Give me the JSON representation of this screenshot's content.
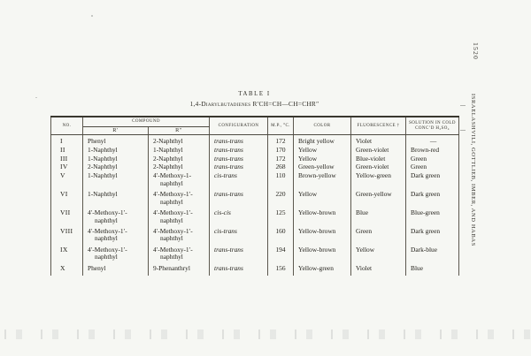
{
  "page": {
    "page_number": "1520",
    "running_head": "ISRAELASHVILI, GOTTLIEB, IMBER, AND HABAS"
  },
  "table": {
    "title": "TABLE I",
    "subtitle": "1,4-Diarylbutadienes R′CH=CH—CH=CHR″",
    "headers": {
      "no": "No.",
      "compound": "Compound",
      "r_prime": "R′",
      "r_double_prime": "R″",
      "configuration": "Configuration",
      "mp": "M.P., °C.",
      "color": "Color",
      "fluorescence": "Fluorescence †",
      "solution_line1": "Solution in cold",
      "solution_line2": "conc’d H₂SO₄"
    },
    "rows": [
      {
        "no": "I",
        "r1": "Phenyl",
        "r2": "2-Naphthyl",
        "config": "trans-trans",
        "mp": "172",
        "color": "Bright yellow",
        "fluorescence": "Violet",
        "solution": "—"
      },
      {
        "no": "II",
        "r1": "1-Naphthyl",
        "r2": "1-Naphthyl",
        "config": "trans-trans",
        "mp": "170",
        "color": "Yellow",
        "fluorescence": "Green-violet",
        "solution": "Brown-red"
      },
      {
        "no": "III",
        "r1": "1-Naphthyl",
        "r2": "2-Naphthyl",
        "config": "trans-trans",
        "mp": "172",
        "color": "Yellow",
        "fluorescence": "Blue-violet",
        "solution": "Green"
      },
      {
        "no": "IV",
        "r1": "2-Naphthyl",
        "r2": "2-Naphthyl",
        "config": "trans-trans",
        "mp": "268",
        "color": "Green-yellow",
        "fluorescence": "Green-violet",
        "solution": "Green"
      },
      {
        "no": "V",
        "r1": "1-Naphthyl",
        "r2": "4′-Methoxy-1-naphthyl",
        "config": "cis-trans",
        "mp": "110",
        "color": "Brown-yellow",
        "fluorescence": "Yellow-green",
        "solution": "Dark green"
      },
      {
        "no": "VI",
        "r1": "1-Naphthyl",
        "r2": "4′-Methoxy-1′-naphthyl",
        "config": "trans-trans",
        "mp": "220",
        "color": "Yellow",
        "fluorescence": "Green-yellow",
        "solution": "Dark green"
      },
      {
        "no": "VII",
        "r1": "4′-Methoxy-1′-naphthyl",
        "r2": "4′-Methoxy-1′-naphthyl",
        "config": "cis-cis",
        "mp": "125",
        "color": "Yellow-brown",
        "fluorescence": "Blue",
        "solution": "Blue-green"
      },
      {
        "no": "VIII",
        "r1": "4′-Methoxy-1′-naphthyl",
        "r2": "4′-Methoxy-1′-naphthyl",
        "config": "cis-trans",
        "mp": "160",
        "color": "Yellow-brown",
        "fluorescence": "Green",
        "solution": "Dark green"
      },
      {
        "no": "IX",
        "r1": "4′-Methoxy-1′-naphthyl",
        "r2": "4′-Methoxy-1′-naphthyl",
        "config": "trans-trans",
        "mp": "194",
        "color": "Yellow-brown",
        "fluorescence": "Yellow",
        "solution": "Dark-blue"
      },
      {
        "no": "X",
        "r1": "Phenyl",
        "r2": "9-Phenanthryl",
        "config": "trans-trans",
        "mp": "156",
        "color": "Yellow-green",
        "fluorescence": "Violet",
        "solution": "Blue"
      }
    ]
  }
}
